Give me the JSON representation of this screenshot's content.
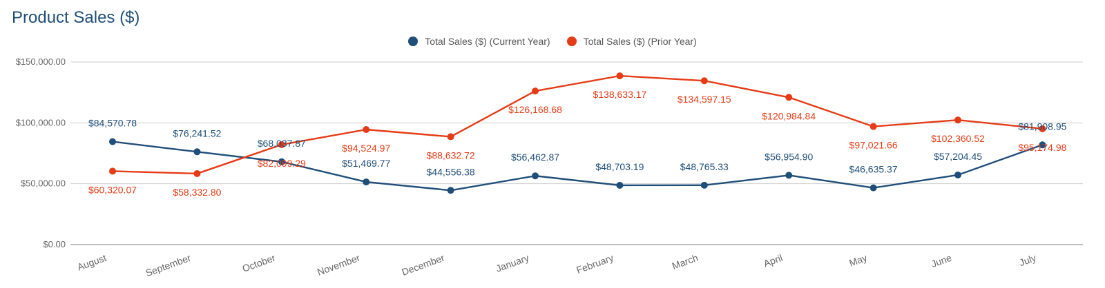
{
  "colors": {
    "current": "#1f4e79",
    "prior": "#e53b16",
    "grid": "#cccccc",
    "axis": "#999999",
    "title": "#1f4e79"
  },
  "chart_data": {
    "type": "line",
    "title": "Product Sales ($)",
    "xlabel": "",
    "ylabel": "",
    "ylim": [
      0,
      150000
    ],
    "y_ticks": [
      {
        "value": 0,
        "label": "$0.00"
      },
      {
        "value": 50000,
        "label": "$50,000.00"
      },
      {
        "value": 100000,
        "label": "$100,000.00"
      },
      {
        "value": 150000,
        "label": "$150,000.00"
      }
    ],
    "grid": true,
    "legend_position": "top-center",
    "categories": [
      "August",
      "September",
      "October",
      "November",
      "December",
      "January",
      "February",
      "March",
      "April",
      "May",
      "June",
      "July"
    ],
    "series": [
      {
        "name": "Total Sales ($) (Current Year)",
        "color_key": "current",
        "values": [
          84570.78,
          76241.52,
          68037.87,
          51469.77,
          44556.38,
          56462.87,
          48703.19,
          48765.33,
          56954.9,
          46635.37,
          57204.45,
          81908.95
        ],
        "labels": [
          "$84,570.78",
          "$76,241.52",
          "$68,037.87",
          "$51,469.77",
          "$44,556.38",
          "$56,462.87",
          "$48,703.19",
          "$48,765.33",
          "$56,954.90",
          "$46,635.37",
          "$57,204.45",
          "$81,908.95"
        ],
        "label_side": "above"
      },
      {
        "name": "Total Sales ($) (Prior Year)",
        "color_key": "prior",
        "values": [
          60320.07,
          58332.8,
          82099.29,
          94524.97,
          88632.72,
          126168.68,
          138633.17,
          134597.15,
          120984.84,
          97021.66,
          102360.52,
          95174.98
        ],
        "labels": [
          "$60,320.07",
          "$58,332.80",
          "$82,099.29",
          "$94,524.97",
          "$88,632.72",
          "$126,168.68",
          "$138,633.17",
          "$134,597.15",
          "$120,984.84",
          "$97,021.66",
          "$102,360.52",
          "$95,174.98"
        ],
        "label_side": "below"
      }
    ]
  }
}
